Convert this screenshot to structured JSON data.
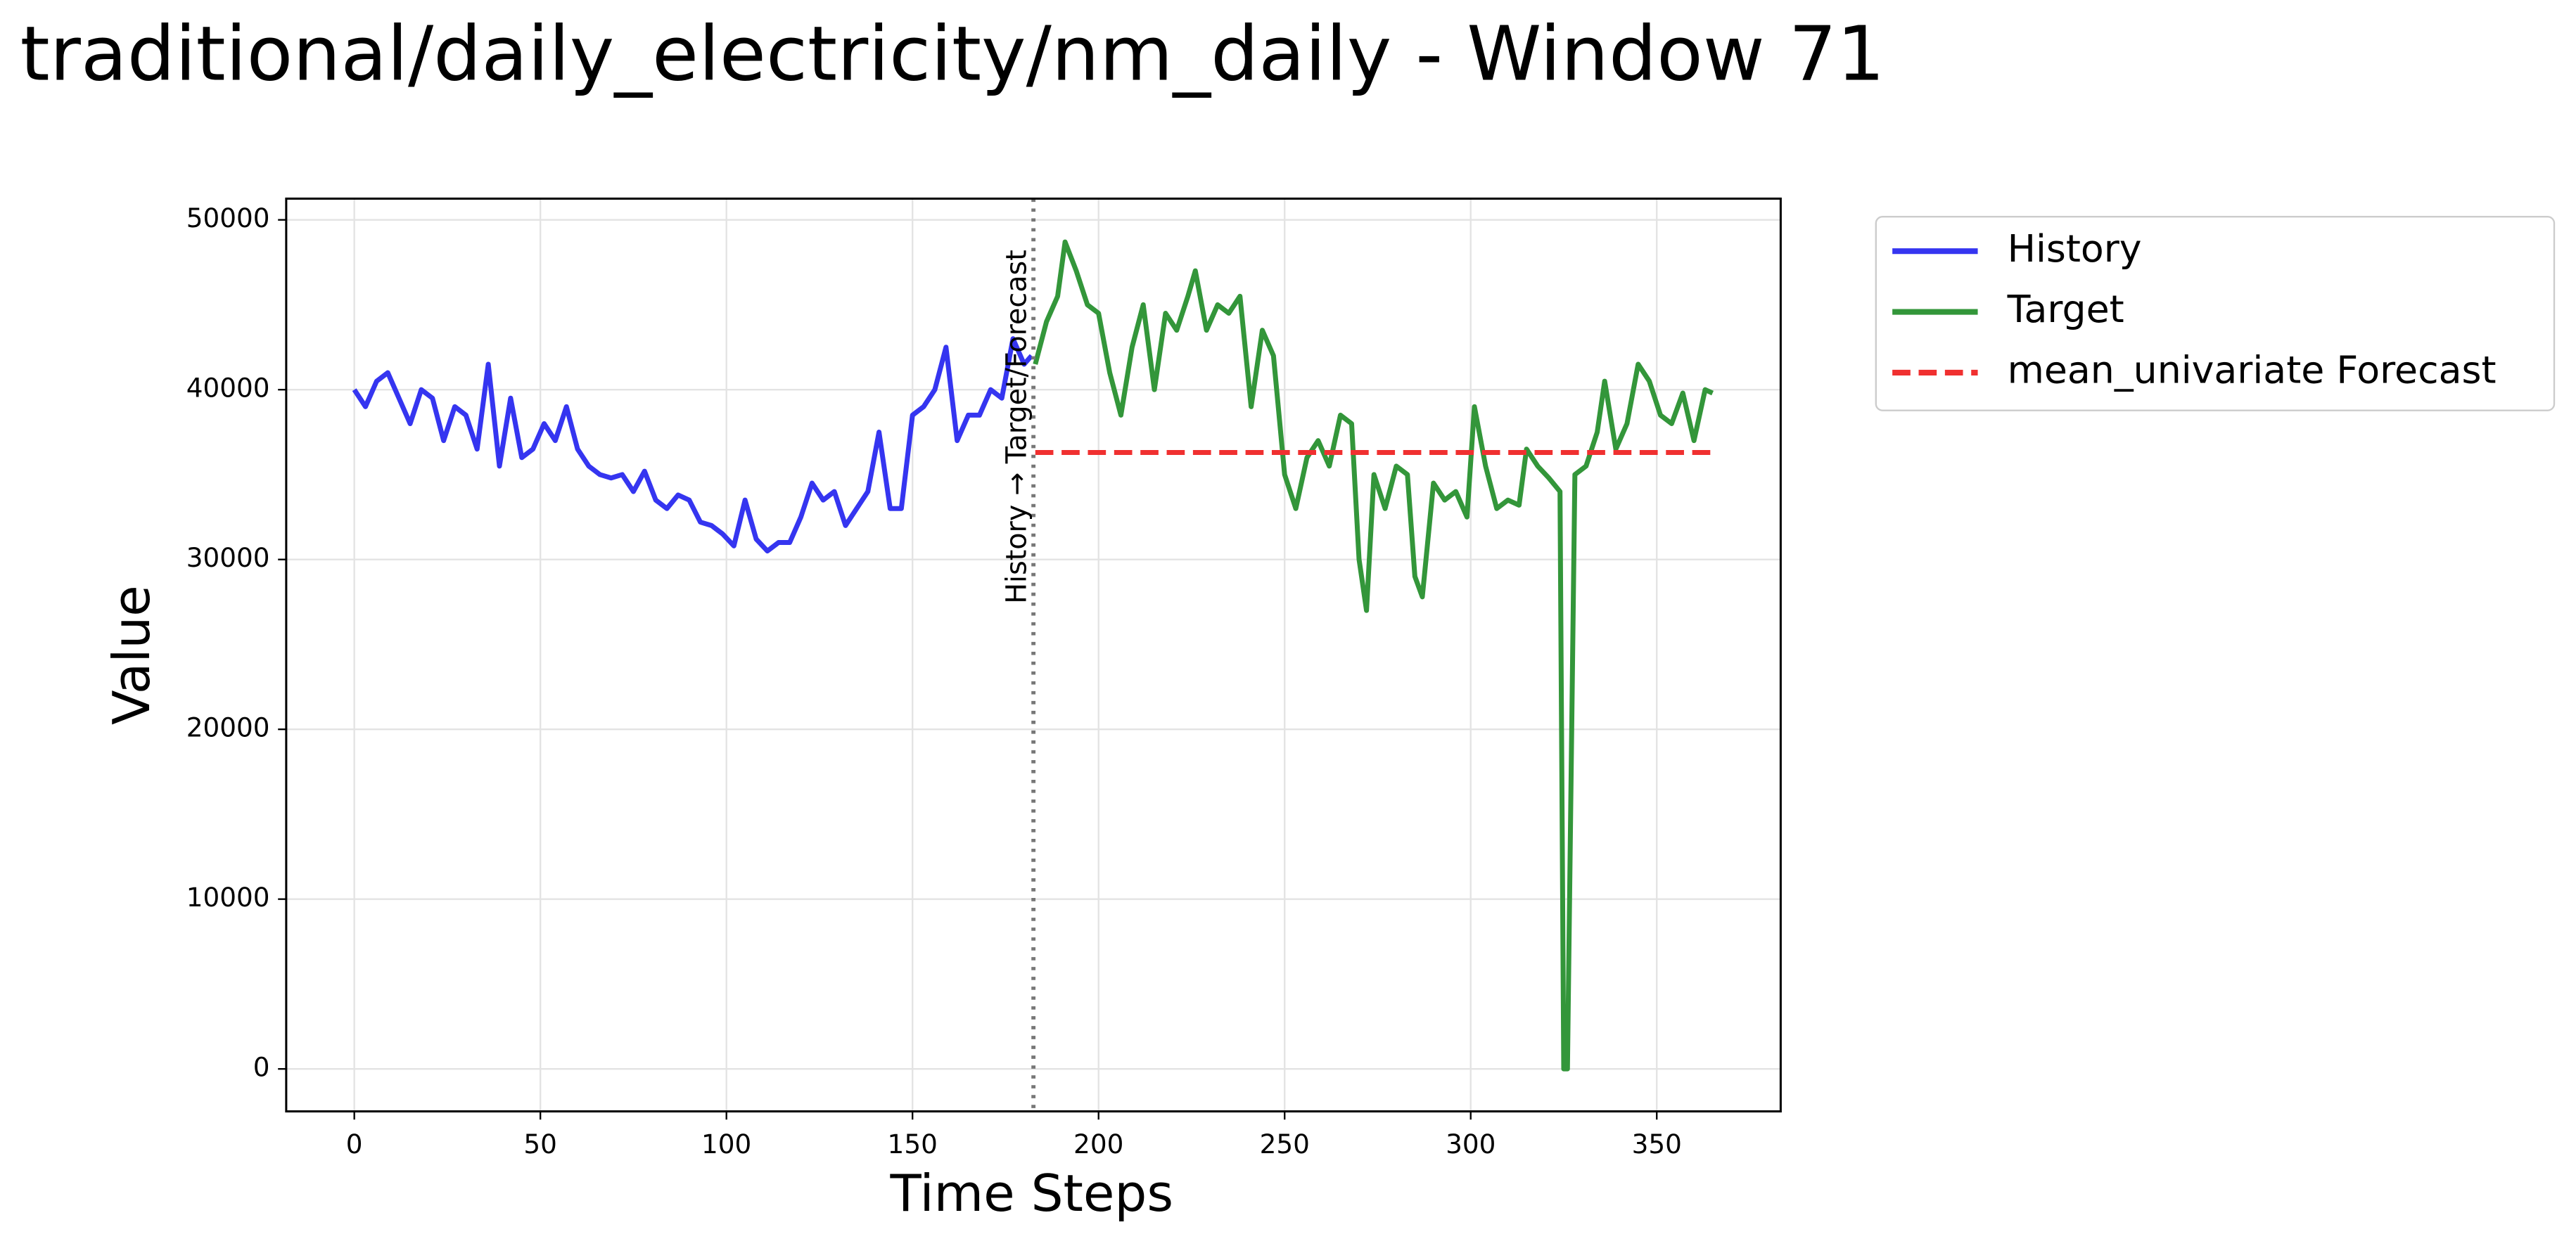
{
  "chart_data": {
    "type": "line",
    "title": "traditional/daily_electricity/nm_daily - Window 71",
    "xlabel": "Time Steps",
    "ylabel": "Value",
    "xlim": [
      -18.3,
      383.3
    ],
    "ylim": [
      -2500,
      51250
    ],
    "xticks": [
      0,
      50,
      100,
      150,
      200,
      250,
      300,
      350
    ],
    "yticks": [
      0,
      10000,
      20000,
      30000,
      40000,
      50000
    ],
    "grid": true,
    "legend": "outside upper right",
    "divider": {
      "x": 182.5,
      "label": "History → Target/Forecast"
    },
    "series": [
      {
        "name": "History",
        "color": "#3535f0",
        "linestyle": "solid",
        "x": [
          0,
          3,
          6,
          9,
          12,
          15,
          18,
          21,
          24,
          27,
          30,
          33,
          36,
          39,
          42,
          45,
          48,
          51,
          54,
          57,
          60,
          63,
          66,
          69,
          72,
          75,
          78,
          81,
          84,
          87,
          90,
          93,
          96,
          99,
          102,
          105,
          108,
          111,
          114,
          117,
          120,
          123,
          126,
          129,
          132,
          135,
          138,
          141,
          144,
          147,
          150,
          153,
          156,
          159,
          162,
          165,
          168,
          171,
          174,
          177,
          180,
          182
        ],
        "values": [
          40000,
          39000,
          40500,
          41000,
          39500,
          38000,
          40000,
          39500,
          37000,
          39000,
          38500,
          36500,
          41500,
          35500,
          39500,
          36000,
          36500,
          38000,
          37000,
          39000,
          36500,
          35500,
          35000,
          34800,
          35000,
          34000,
          35200,
          33500,
          33000,
          33800,
          33500,
          32200,
          32000,
          31500,
          30800,
          33500,
          31200,
          30500,
          31000,
          31000,
          32500,
          34500,
          33500,
          34000,
          32000,
          33000,
          34000,
          37500,
          33000,
          33000,
          38500,
          39000,
          40000,
          42500,
          37000,
          38500,
          38500,
          40000,
          39500,
          43000,
          41500,
          42000
        ]
      },
      {
        "name": "Target",
        "color": "#33963a",
        "linestyle": "solid",
        "x": [
          183,
          186,
          189,
          191,
          194,
          197,
          200,
          203,
          206,
          209,
          212,
          215,
          218,
          221,
          224,
          226,
          229,
          232,
          235,
          238,
          241,
          244,
          247,
          250,
          253,
          256,
          259,
          262,
          265,
          268,
          270,
          272,
          274,
          277,
          280,
          283,
          285,
          287,
          290,
          293,
          296,
          299,
          301,
          304,
          307,
          310,
          313,
          315,
          318,
          321,
          324,
          325,
          326,
          328,
          331,
          334,
          336,
          339,
          342,
          345,
          348,
          351,
          354,
          357,
          360,
          363,
          365
        ],
        "values": [
          41500,
          44000,
          45500,
          48700,
          47000,
          45000,
          44500,
          41000,
          38500,
          42500,
          45000,
          40000,
          44500,
          43500,
          45500,
          47000,
          43500,
          45000,
          44500,
          45500,
          39000,
          43500,
          42000,
          35000,
          33000,
          36000,
          37000,
          35500,
          38500,
          38000,
          30000,
          27000,
          35000,
          33000,
          35500,
          35000,
          29000,
          27800,
          34500,
          33500,
          34000,
          32500,
          39000,
          35500,
          33000,
          33500,
          33200,
          36500,
          35500,
          34800,
          34000,
          0,
          0,
          35000,
          35500,
          37500,
          40500,
          36500,
          38000,
          41500,
          40500,
          38500,
          38000,
          39800,
          37000,
          40000,
          39800
        ]
      },
      {
        "name": "mean_univariate Forecast",
        "color": "#f03030",
        "linestyle": "dashed",
        "x": [
          183,
          365
        ],
        "values": [
          36300,
          36300
        ]
      }
    ]
  }
}
